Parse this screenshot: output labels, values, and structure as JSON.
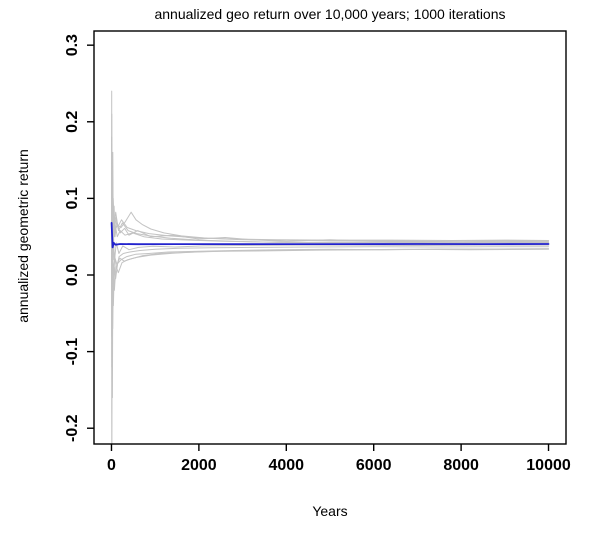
{
  "page": {
    "background": "#ffffff"
  },
  "chart_data": {
    "type": "line",
    "title": "annualized geo return over 10,000 years; 1000 iterations",
    "xlabel": "Years",
    "ylabel": "annualized geometric return",
    "grid": false,
    "legend": null,
    "xlim": [
      -400,
      10400
    ],
    "ylim": [
      -0.2206,
      0.3185
    ],
    "x_ticks": {
      "values": [
        0,
        2000,
        4000,
        6000,
        8000,
        10000
      ],
      "labels": [
        "0",
        "2000",
        "4000",
        "6000",
        "8000",
        "10000"
      ]
    },
    "y_ticks": {
      "values": [
        0.3,
        0.2,
        0.1,
        0.0,
        -0.1,
        -0.2
      ],
      "labels": [
        "0.3",
        "0.2",
        "0.1",
        "0.0",
        "-0.1",
        "-0.2"
      ]
    },
    "colors": {
      "iteration": "#c3c3c3",
      "mean": "#2323cd",
      "axis": "#000000"
    },
    "series": [
      {
        "name": "iteration-1",
        "color_key": "iteration",
        "width": 1,
        "points": [
          [
            3,
            0.05
          ],
          [
            5,
            0.24
          ],
          [
            9,
            0.02
          ],
          [
            14,
            0.1
          ],
          [
            20,
            0.05
          ],
          [
            30,
            0.16
          ],
          [
            45,
            0.02
          ],
          [
            60,
            0.09
          ],
          [
            80,
            0.05
          ],
          [
            120,
            0.07
          ],
          [
            200,
            0.055
          ],
          [
            300,
            0.061
          ],
          [
            400,
            0.052
          ],
          [
            600,
            0.058
          ],
          [
            900,
            0.05
          ],
          [
            1400,
            0.052
          ],
          [
            2000,
            0.047
          ],
          [
            2600,
            0.049
          ],
          [
            3200,
            0.046
          ],
          [
            4000,
            0.044
          ],
          [
            5000,
            0.046
          ],
          [
            6000,
            0.044
          ],
          [
            7000,
            0.0435
          ],
          [
            8000,
            0.044
          ],
          [
            9000,
            0.0435
          ],
          [
            10000,
            0.044
          ]
        ]
      },
      {
        "name": "iteration-2",
        "color_key": "iteration",
        "width": 1,
        "points": [
          [
            3,
            0.05
          ],
          [
            8,
            -0.3
          ],
          [
            14,
            -0.08
          ],
          [
            20,
            -0.16
          ],
          [
            30,
            0.0
          ],
          [
            45,
            -0.04
          ],
          [
            65,
            0.01
          ],
          [
            95,
            -0.005
          ],
          [
            140,
            0.015
          ],
          [
            220,
            0.02
          ],
          [
            350,
            0.024
          ],
          [
            550,
            0.027
          ],
          [
            850,
            0.028
          ],
          [
            1300,
            0.03
          ],
          [
            2000,
            0.031
          ],
          [
            2800,
            0.032
          ],
          [
            3800,
            0.033
          ],
          [
            5000,
            0.0335
          ],
          [
            6200,
            0.033
          ],
          [
            7500,
            0.034
          ],
          [
            8800,
            0.034
          ],
          [
            10000,
            0.0345
          ]
        ]
      },
      {
        "name": "iteration-3",
        "color_key": "iteration",
        "width": 1,
        "points": [
          [
            3,
            0.18
          ],
          [
            9,
            0.0
          ],
          [
            15,
            0.08
          ],
          [
            24,
            0.13
          ],
          [
            38,
            0.04
          ],
          [
            58,
            0.075
          ],
          [
            90,
            0.06
          ],
          [
            140,
            0.065
          ],
          [
            220,
            0.062
          ],
          [
            320,
            0.07
          ],
          [
            450,
            0.082
          ],
          [
            560,
            0.072
          ],
          [
            700,
            0.066
          ],
          [
            900,
            0.06
          ],
          [
            1200,
            0.055
          ],
          [
            1600,
            0.051
          ],
          [
            2200,
            0.048
          ],
          [
            3000,
            0.046
          ],
          [
            4000,
            0.0455
          ],
          [
            5000,
            0.0445
          ],
          [
            6200,
            0.0445
          ],
          [
            7500,
            0.044
          ],
          [
            8800,
            0.0445
          ],
          [
            10000,
            0.0445
          ]
        ]
      },
      {
        "name": "iteration-4",
        "color_key": "iteration",
        "width": 1,
        "points": [
          [
            3,
            -0.02
          ],
          [
            8,
            0.09
          ],
          [
            14,
            -0.04
          ],
          [
            22,
            0.02
          ],
          [
            34,
            -0.015
          ],
          [
            52,
            0.012
          ],
          [
            80,
            0.022
          ],
          [
            125,
            0.014
          ],
          [
            190,
            0.022
          ],
          [
            290,
            0.018
          ],
          [
            450,
            0.021
          ],
          [
            700,
            0.025
          ],
          [
            1100,
            0.028
          ],
          [
            1700,
            0.0295
          ],
          [
            2500,
            0.031
          ],
          [
            3500,
            0.0315
          ],
          [
            4800,
            0.0325
          ],
          [
            6200,
            0.033
          ],
          [
            7600,
            0.0335
          ],
          [
            8800,
            0.0335
          ],
          [
            10000,
            0.034
          ]
        ]
      },
      {
        "name": "iteration-5",
        "color_key": "iteration",
        "width": 1,
        "points": [
          [
            3,
            0.12
          ],
          [
            7,
            0.21
          ],
          [
            12,
            0.05
          ],
          [
            18,
            0.11
          ],
          [
            28,
            0.06
          ],
          [
            44,
            0.085
          ],
          [
            68,
            0.06
          ],
          [
            105,
            0.075
          ],
          [
            160,
            0.058
          ],
          [
            250,
            0.068
          ],
          [
            380,
            0.058
          ],
          [
            580,
            0.054
          ],
          [
            880,
            0.051
          ],
          [
            1350,
            0.048
          ],
          [
            2000,
            0.0455
          ],
          [
            2800,
            0.044
          ],
          [
            3800,
            0.0425
          ],
          [
            5000,
            0.042
          ],
          [
            6200,
            0.0425
          ],
          [
            7500,
            0.0415
          ],
          [
            8800,
            0.042
          ],
          [
            10000,
            0.042
          ]
        ]
      },
      {
        "name": "iteration-6",
        "color_key": "iteration",
        "width": 1,
        "points": [
          [
            3,
            0.02
          ],
          [
            7,
            0.14
          ],
          [
            12,
            -0.02
          ],
          [
            19,
            0.06
          ],
          [
            30,
            0.0
          ],
          [
            46,
            0.045
          ],
          [
            72,
            0.02
          ],
          [
            110,
            0.042
          ],
          [
            170,
            0.028
          ],
          [
            260,
            0.038
          ],
          [
            400,
            0.033
          ],
          [
            620,
            0.036
          ],
          [
            950,
            0.0375
          ],
          [
            1450,
            0.0365
          ],
          [
            2100,
            0.038
          ],
          [
            3000,
            0.0385
          ],
          [
            4200,
            0.039
          ],
          [
            5500,
            0.039
          ],
          [
            7000,
            0.0385
          ],
          [
            8500,
            0.039
          ],
          [
            10000,
            0.039
          ]
        ]
      },
      {
        "name": "iteration-7",
        "color_key": "iteration",
        "width": 1,
        "points": [
          [
            3,
            0.08
          ],
          [
            7,
            -0.12
          ],
          [
            13,
            0.03
          ],
          [
            20,
            -0.05
          ],
          [
            31,
            0.025
          ],
          [
            48,
            -0.01
          ],
          [
            74,
            0.025
          ],
          [
            115,
            0.008
          ],
          [
            175,
            0.024
          ],
          [
            270,
            0.028
          ],
          [
            420,
            0.03
          ],
          [
            650,
            0.032
          ],
          [
            1000,
            0.0335
          ],
          [
            1550,
            0.035
          ],
          [
            2300,
            0.0355
          ],
          [
            3300,
            0.036
          ],
          [
            4600,
            0.0365
          ],
          [
            6000,
            0.037
          ],
          [
            7400,
            0.0365
          ],
          [
            8700,
            0.037
          ],
          [
            10000,
            0.037
          ]
        ]
      },
      {
        "name": "iteration-8",
        "color_key": "iteration",
        "width": 1,
        "points": [
          [
            3,
            0.16
          ],
          [
            8,
            0.07
          ],
          [
            14,
            0.12
          ],
          [
            23,
            0.05
          ],
          [
            36,
            0.085
          ],
          [
            56,
            0.05
          ],
          [
            86,
            0.065
          ],
          [
            132,
            0.05
          ],
          [
            200,
            0.058
          ],
          [
            310,
            0.052
          ],
          [
            480,
            0.055
          ],
          [
            740,
            0.05
          ],
          [
            1150,
            0.047
          ],
          [
            1750,
            0.0455
          ],
          [
            2550,
            0.044
          ],
          [
            3600,
            0.043
          ],
          [
            4900,
            0.0425
          ],
          [
            6300,
            0.043
          ],
          [
            7700,
            0.0425
          ],
          [
            9000,
            0.043
          ],
          [
            10000,
            0.043
          ]
        ]
      },
      {
        "name": "iteration-9",
        "color_key": "iteration",
        "width": 1,
        "points": [
          [
            3,
            -0.08
          ],
          [
            7,
            0.05
          ],
          [
            12,
            -0.14
          ],
          [
            18,
            -0.02
          ],
          [
            28,
            -0.07
          ],
          [
            43,
            0.003
          ],
          [
            66,
            -0.02
          ],
          [
            100,
            0.012
          ],
          [
            155,
            0.003
          ],
          [
            240,
            0.016
          ],
          [
            370,
            0.02
          ],
          [
            580,
            0.023
          ],
          [
            900,
            0.026
          ],
          [
            1400,
            0.0285
          ],
          [
            2050,
            0.0305
          ],
          [
            2900,
            0.0315
          ],
          [
            4000,
            0.0325
          ],
          [
            5300,
            0.033
          ],
          [
            6700,
            0.0335
          ],
          [
            8200,
            0.033
          ],
          [
            10000,
            0.0335
          ]
        ]
      },
      {
        "name": "iteration-10",
        "color_key": "iteration",
        "width": 1,
        "points": [
          [
            3,
            0.1
          ],
          [
            6,
            0.18
          ],
          [
            11,
            0.08
          ],
          [
            17,
            0.14
          ],
          [
            26,
            0.07
          ],
          [
            40,
            0.1
          ],
          [
            62,
            0.065
          ],
          [
            96,
            0.082
          ],
          [
            148,
            0.063
          ],
          [
            230,
            0.072
          ],
          [
            360,
            0.062
          ],
          [
            560,
            0.058
          ],
          [
            860,
            0.054
          ],
          [
            1320,
            0.051
          ],
          [
            1950,
            0.0485
          ],
          [
            2750,
            0.047
          ],
          [
            3800,
            0.046
          ],
          [
            5000,
            0.0455
          ],
          [
            6400,
            0.0455
          ],
          [
            7800,
            0.045
          ],
          [
            9000,
            0.0455
          ],
          [
            10000,
            0.045
          ]
        ]
      },
      {
        "name": "mean",
        "color_key": "mean",
        "width": 1.8,
        "points": [
          [
            2,
            0.068
          ],
          [
            25,
            0.036
          ],
          [
            50,
            0.042
          ],
          [
            90,
            0.0395
          ],
          [
            200,
            0.0405
          ],
          [
            600,
            0.0402
          ],
          [
            1500,
            0.0403
          ],
          [
            3000,
            0.0404
          ],
          [
            5000,
            0.0404
          ],
          [
            7000,
            0.0405
          ],
          [
            8500,
            0.0404
          ],
          [
            10000,
            0.0405
          ]
        ]
      }
    ]
  }
}
